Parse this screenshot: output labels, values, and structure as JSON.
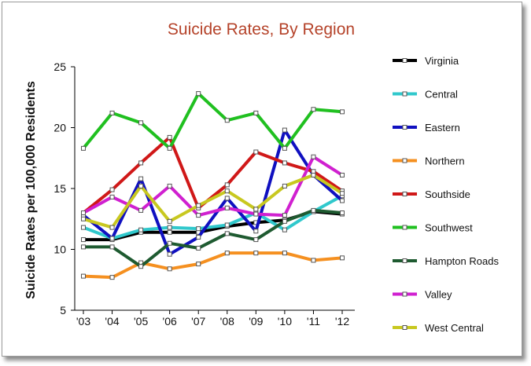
{
  "chart_data": {
    "type": "line",
    "title": "Suicide Rates, By Region",
    "xlabel": "",
    "ylabel": "Suicide Rates per 100,000 Residents",
    "ylim": [
      5,
      25
    ],
    "yticks": [
      5,
      10,
      15,
      20,
      25
    ],
    "categories": [
      "'03",
      "'04",
      "'05",
      "'06",
      "'07",
      "'08",
      "'09",
      "'10",
      "'11",
      "'12"
    ],
    "grid": "off",
    "legend_position": "right",
    "series": [
      {
        "name": "Virginia",
        "color": "#000000",
        "values": [
          10.8,
          10.8,
          11.4,
          11.4,
          11.4,
          11.9,
          12.2,
          12.4,
          13.1,
          12.9
        ]
      },
      {
        "name": "Central",
        "color": "#30c8cc",
        "values": [
          11.8,
          10.9,
          11.6,
          11.8,
          11.7,
          12.0,
          13.0,
          11.6,
          13.1,
          14.4
        ]
      },
      {
        "name": "Eastern",
        "color": "#1010c0",
        "values": [
          12.8,
          10.9,
          15.8,
          9.6,
          11.0,
          14.2,
          11.5,
          19.8,
          16.1,
          14.0
        ]
      },
      {
        "name": "Northern",
        "color": "#f59020",
        "values": [
          7.8,
          7.7,
          8.9,
          8.4,
          8.8,
          9.7,
          9.7,
          9.7,
          9.1,
          9.3
        ]
      },
      {
        "name": "Southside",
        "color": "#d01818",
        "values": [
          13.0,
          14.9,
          17.1,
          19.2,
          13.4,
          15.3,
          18.0,
          17.1,
          16.4,
          14.8
        ]
      },
      {
        "name": "Southwest",
        "color": "#20c020",
        "values": [
          18.3,
          21.2,
          20.4,
          18.3,
          22.8,
          20.6,
          21.2,
          18.3,
          21.5,
          21.3
        ]
      },
      {
        "name": "Hampton Roads",
        "color": "#1e5a30",
        "values": [
          10.2,
          10.2,
          8.6,
          10.5,
          10.1,
          11.3,
          10.8,
          12.3,
          13.2,
          13.0
        ]
      },
      {
        "name": "Valley",
        "color": "#d020d0",
        "values": [
          13.0,
          14.3,
          13.2,
          15.2,
          12.8,
          13.4,
          12.9,
          12.8,
          17.6,
          16.1
        ]
      },
      {
        "name": "West Central",
        "color": "#c8c820",
        "values": [
          12.5,
          11.8,
          15.2,
          12.3,
          13.6,
          14.8,
          13.3,
          15.2,
          16.1,
          14.6
        ]
      }
    ]
  }
}
